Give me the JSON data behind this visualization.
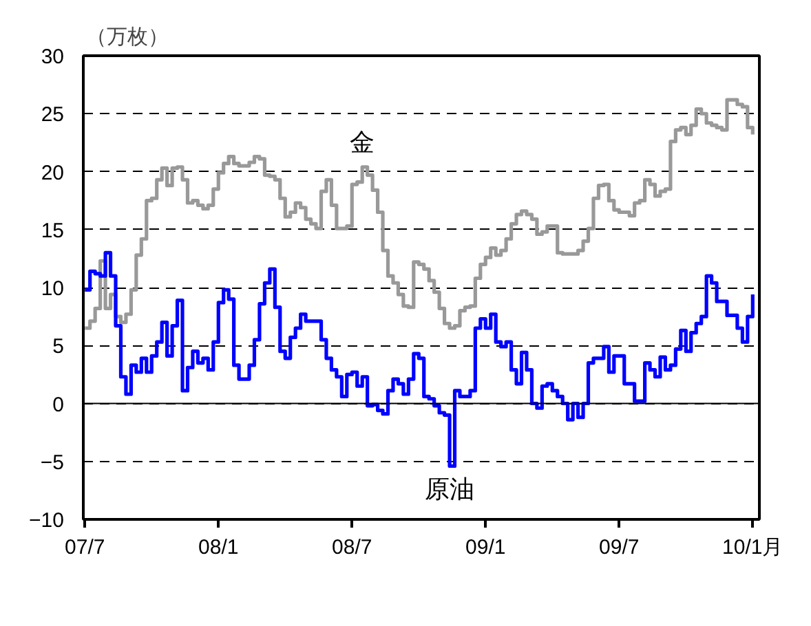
{
  "chart_data": {
    "type": "step",
    "ylabel": "（万枚）",
    "categories": [
      "07/7",
      null,
      null,
      null,
      null,
      null,
      null,
      null,
      null,
      null,
      null,
      null,
      null,
      null,
      null,
      null,
      null,
      null,
      null,
      null,
      null,
      null,
      null,
      null,
      null,
      null,
      "08/1",
      null,
      null,
      null,
      null,
      null,
      null,
      null,
      null,
      null,
      null,
      null,
      null,
      null,
      null,
      null,
      null,
      null,
      null,
      null,
      null,
      null,
      null,
      null,
      null,
      null,
      "08/7",
      null,
      null,
      null,
      null,
      null,
      null,
      null,
      null,
      null,
      null,
      null,
      null,
      null,
      null,
      null,
      null,
      null,
      null,
      null,
      null,
      null,
      null,
      null,
      null,
      null,
      "09/1",
      null,
      null,
      null,
      null,
      null,
      null,
      null,
      null,
      null,
      null,
      null,
      null,
      null,
      null,
      null,
      null,
      null,
      null,
      null,
      null,
      null,
      null,
      null,
      null,
      null,
      "09/7",
      null,
      null,
      null,
      null,
      null,
      null,
      null,
      null,
      null,
      null,
      null,
      null,
      null,
      null,
      null,
      null,
      null,
      null,
      null,
      null,
      null,
      null,
      null,
      null,
      null,
      "10/1月"
    ],
    "ylim": [
      -10,
      30
    ],
    "yticks": [
      -10,
      -5,
      0,
      5,
      10,
      15,
      20,
      25,
      30
    ],
    "grid": "y",
    "ref_lines": [
      {
        "axis": "y",
        "value": 0,
        "color": "#000000",
        "line_style": "solid"
      }
    ],
    "series": [
      {
        "name": "金",
        "color": "#999999",
        "values": [
          6.5,
          7.1,
          8.2,
          12.3,
          8.2,
          9.4,
          7.5,
          7.0,
          7.7,
          9.8,
          12.8,
          14.2,
          17.5,
          17.7,
          19.3,
          20.3,
          18.8,
          20.3,
          20.4,
          19.3,
          17.3,
          17.5,
          17.1,
          16.8,
          17.1,
          18.5,
          19.9,
          20.7,
          21.3,
          20.7,
          20.5,
          20.5,
          20.8,
          21.3,
          21.1,
          19.7,
          19.6,
          19.3,
          17.7,
          16.1,
          16.5,
          17.3,
          16.9,
          15.9,
          15.5,
          15.1,
          18.3,
          19.3,
          17.1,
          15.1,
          15.1,
          15.3,
          18.9,
          19.1,
          20.4,
          19.7,
          18.4,
          16.5,
          13.2,
          11.0,
          10.4,
          9.4,
          8.4,
          8.3,
          12.2,
          12.0,
          11.6,
          10.6,
          9.6,
          8.2,
          6.9,
          6.5,
          6.7,
          8.0,
          8.3,
          8.4,
          10.8,
          12.0,
          12.6,
          13.4,
          12.8,
          13.2,
          14.2,
          15.5,
          16.3,
          16.6,
          16.3,
          15.9,
          14.6,
          14.8,
          15.3,
          15.3,
          13.0,
          12.9,
          12.9,
          12.9,
          13.2,
          14.0,
          15.1,
          17.7,
          18.8,
          18.9,
          17.5,
          16.7,
          16.5,
          16.5,
          16.2,
          17.3,
          17.5,
          19.3,
          18.9,
          17.9,
          18.3,
          18.5,
          22.6,
          23.6,
          23.8,
          23.2,
          24.0,
          25.4,
          25.0,
          24.2,
          24.0,
          23.8,
          23.6,
          26.2,
          26.2,
          25.8,
          25.6,
          23.8,
          23.2
        ]
      },
      {
        "name": "原油",
        "color": "#0000ff",
        "values": [
          9.8,
          11.4,
          11.2,
          11.0,
          13.0,
          11.0,
          6.7,
          2.3,
          0.8,
          3.3,
          2.7,
          3.9,
          2.7,
          4.1,
          5.3,
          7.0,
          4.1,
          6.7,
          8.9,
          1.1,
          3.1,
          4.5,
          3.5,
          3.9,
          2.9,
          5.3,
          8.7,
          9.8,
          9.0,
          3.3,
          2.1,
          2.1,
          3.3,
          5.5,
          8.6,
          10.4,
          11.6,
          8.3,
          4.5,
          3.9,
          5.7,
          6.5,
          7.7,
          7.1,
          7.1,
          7.1,
          5.5,
          3.9,
          2.9,
          2.3,
          0.6,
          2.5,
          2.7,
          1.5,
          2.3,
          -0.2,
          -0.1,
          -0.6,
          -0.9,
          1.1,
          2.1,
          1.7,
          0.8,
          2.1,
          4.3,
          3.9,
          0.6,
          0.4,
          -0.2,
          -0.8,
          -1.0,
          -5.4,
          1.1,
          0.6,
          0.6,
          1.1,
          6.5,
          7.3,
          6.5,
          7.7,
          5.3,
          4.9,
          5.3,
          2.9,
          1.7,
          4.4,
          2.9,
          0.0,
          -0.4,
          1.5,
          1.7,
          1.1,
          0.6,
          0.0,
          -1.4,
          0.0,
          -1.2,
          0.0,
          3.5,
          3.9,
          3.9,
          4.9,
          2.7,
          4.1,
          4.1,
          1.7,
          1.7,
          0.2,
          0.2,
          3.5,
          2.9,
          2.3,
          4.0,
          2.9,
          3.3,
          4.7,
          6.3,
          4.5,
          6.1,
          6.9,
          7.5,
          11.0,
          10.4,
          8.8,
          8.8,
          7.6,
          7.6,
          6.5,
          5.3,
          7.5,
          9.4
        ]
      }
    ]
  }
}
